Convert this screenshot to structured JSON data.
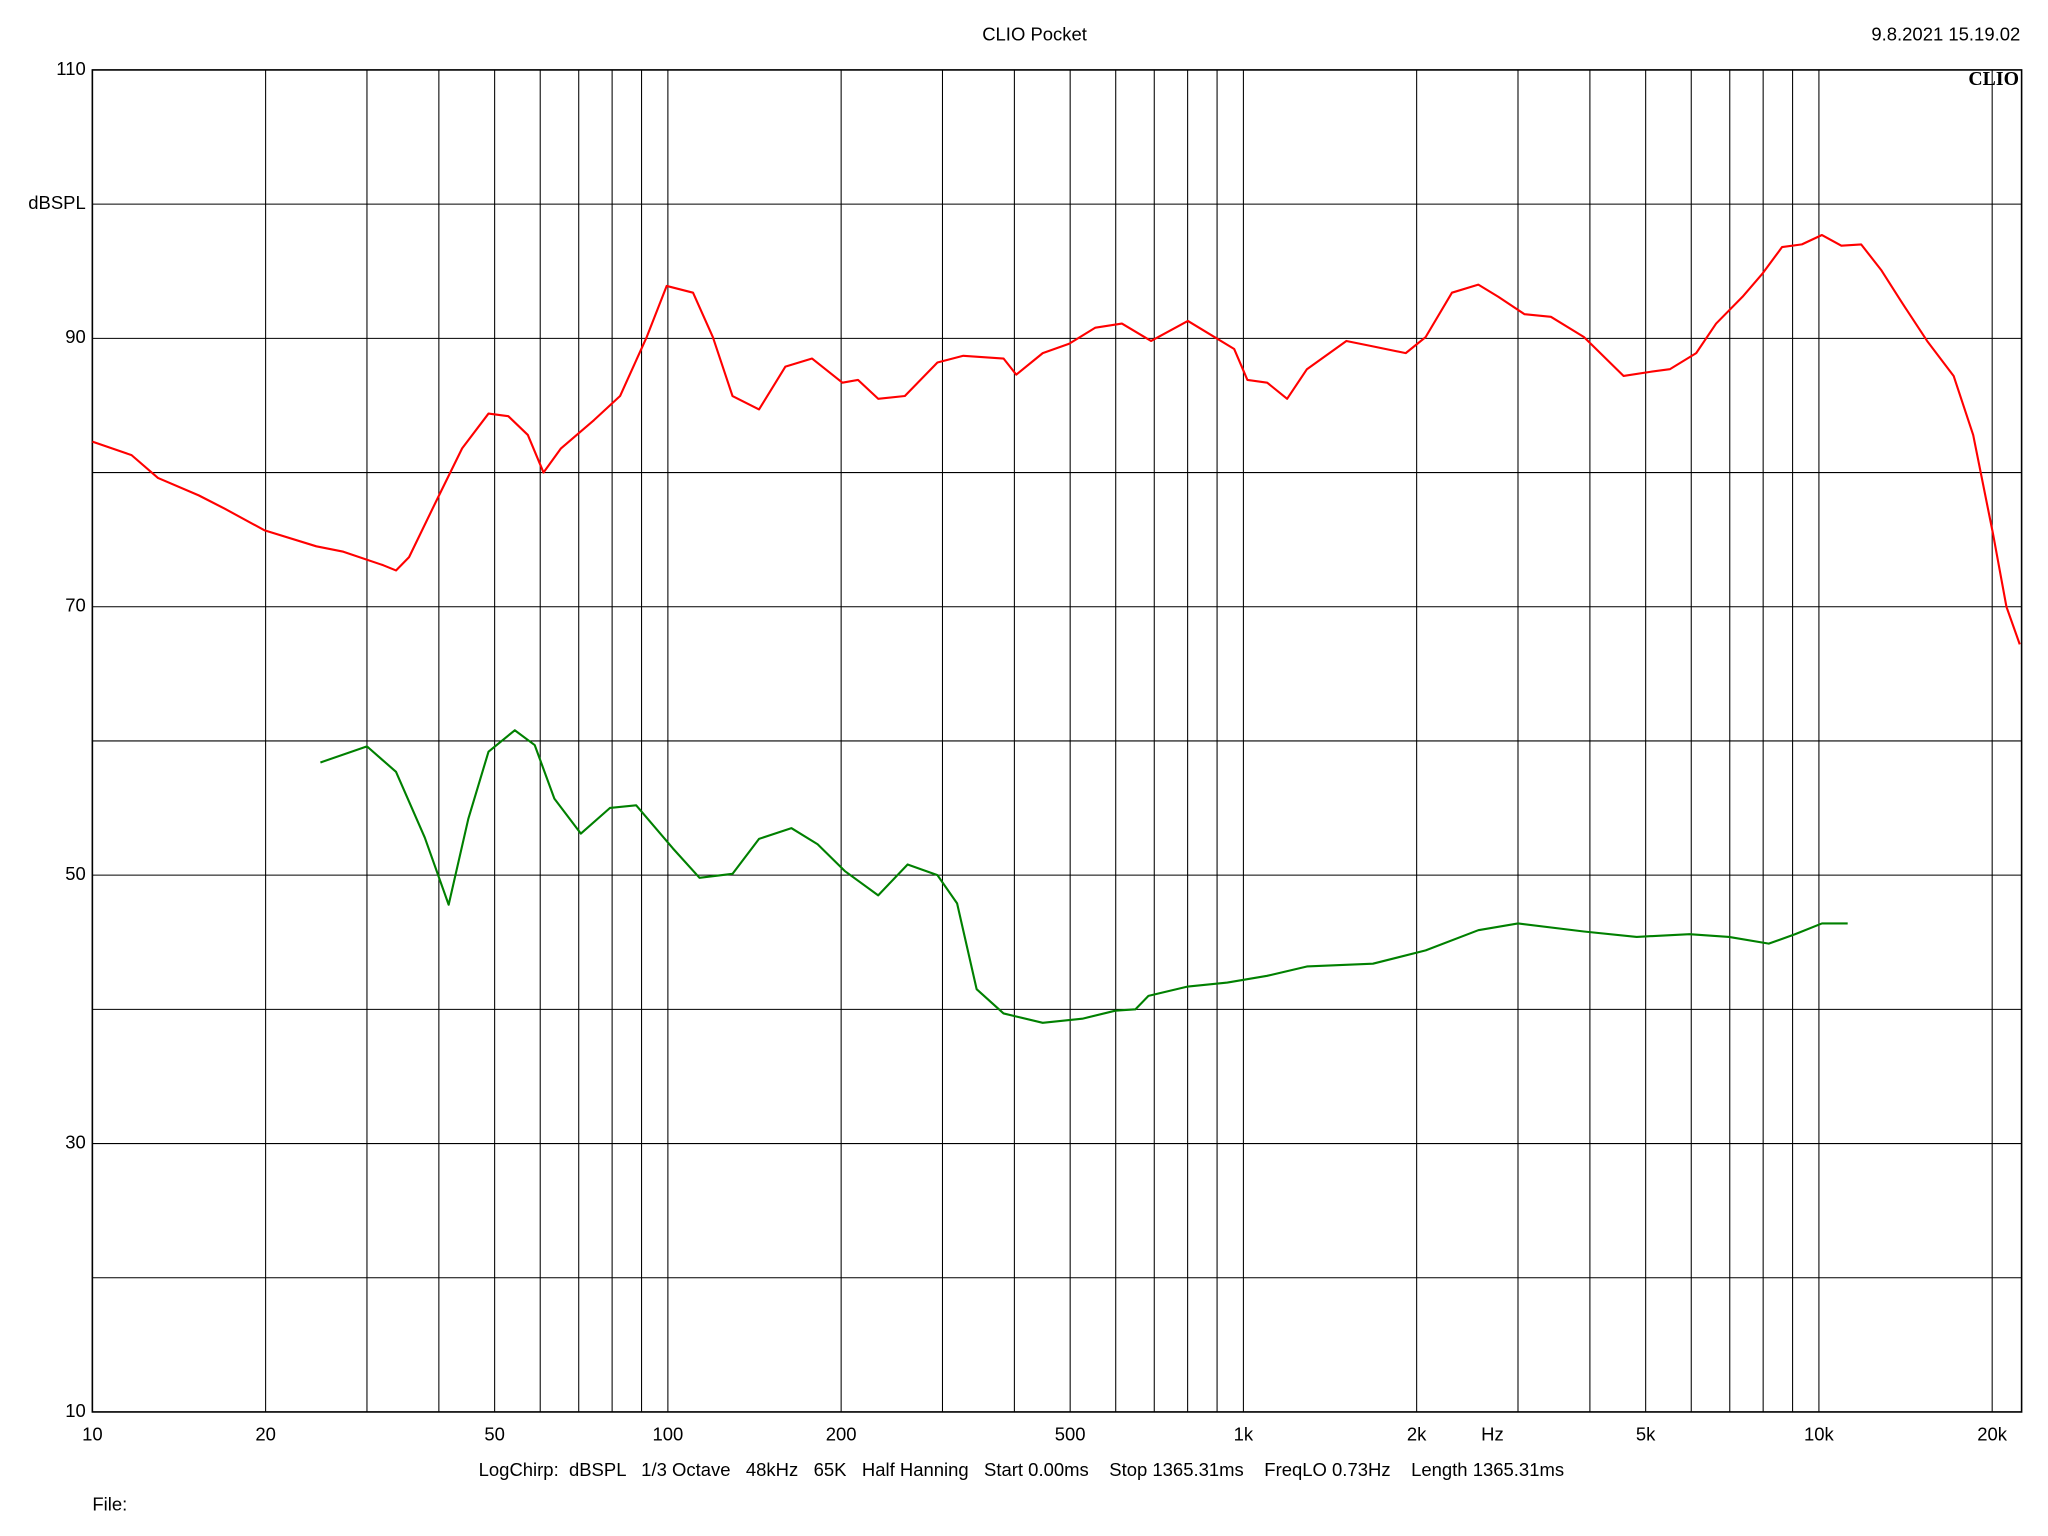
{
  "chart_data": {
    "type": "line",
    "title": "CLIO Pocket",
    "timestamp": "9.8.2021 15.19.02",
    "logo": "CLIO",
    "x_label": "Hz",
    "footer": "LogChirp:  dBSPL   1/3 Octave   48kHz   65K   Half Hanning   Start 0.00ms    Stop 1365.31ms    FreqLO 0.73Hz    Length 1365.31ms",
    "file_label": "File:",
    "xscale": "log",
    "xlim": [
      10,
      22500
    ],
    "ylim": [
      10,
      110
    ],
    "grid": true,
    "xticks": [
      10,
      20,
      50,
      100,
      200,
      500,
      {
        "value": 1000,
        "label": "1k"
      },
      {
        "value": 2000,
        "label": "2k"
      },
      {
        "value": 5000,
        "label": "5k"
      },
      {
        "value": 10000,
        "label": "10k"
      },
      {
        "value": 20000,
        "label": "20k"
      }
    ],
    "xminor": [
      30,
      40,
      60,
      70,
      80,
      90,
      300,
      400,
      600,
      700,
      800,
      900,
      3000,
      4000,
      6000,
      7000,
      8000,
      9000
    ],
    "yticks": [
      10,
      30,
      50,
      70,
      90,
      {
        "value": 100,
        "label": "dBSPL"
      },
      110
    ],
    "yminor": [
      20,
      40,
      60,
      80
    ],
    "series": [
      {
        "color": "#ff0000",
        "x": [
          10,
          11.7,
          13.0,
          15.3,
          17.0,
          19.9,
          24.5,
          27.3,
          32.0,
          33.7,
          35.5,
          39.5,
          43.9,
          48.8,
          52.8,
          57.1,
          60.8,
          65.2,
          74.4,
          82.6,
          91.9,
          99.5,
          110.6,
          119.7,
          129.5,
          144,
          160,
          178,
          201,
          214,
          232,
          258,
          294,
          326,
          383,
          403,
          448,
          498,
          553,
          615,
          691,
          801,
          867,
          964,
          1016,
          1100,
          1191,
          1289,
          1510,
          1679,
          1915,
          2074,
          2303,
          2560,
          2772,
          3080,
          3423,
          3905,
          4577,
          5087,
          5508,
          6121,
          6628,
          7366,
          7970,
          8630,
          9340,
          10120,
          10940,
          11840,
          12820,
          13870,
          15420,
          17140,
          18540,
          20080,
          21170,
          22330
        ],
        "values": [
          82.3,
          81.3,
          79.6,
          78.3,
          77.3,
          75.7,
          74.5,
          74.1,
          73.1,
          72.7,
          73.7,
          77.8,
          81.8,
          84.4,
          84.2,
          82.8,
          80.0,
          81.8,
          83.9,
          85.7,
          90.1,
          93.9,
          93.4,
          90.1,
          85.7,
          84.7,
          87.9,
          88.5,
          86.7,
          86.9,
          85.5,
          85.7,
          88.2,
          88.7,
          88.5,
          87.3,
          88.9,
          89.6,
          90.8,
          91.1,
          89.8,
          91.3,
          90.4,
          89.2,
          86.9,
          86.7,
          85.5,
          87.7,
          89.8,
          89.4,
          88.9,
          90.1,
          93.4,
          94.0,
          93.1,
          91.8,
          91.6,
          90.1,
          87.2,
          87.5,
          87.7,
          88.9,
          91.1,
          93.1,
          94.8,
          96.8,
          97.0,
          97.7,
          96.9,
          97.0,
          95.1,
          92.8,
          89.8,
          87.2,
          82.8,
          75.4,
          70.0,
          67.2
        ]
      },
      {
        "color": "#008000",
        "x": [
          24.9,
          30.0,
          33.7,
          37.8,
          41.6,
          45.0,
          48.8,
          54.2,
          58.7,
          63.5,
          70.6,
          79.3,
          88.1,
          102,
          113.5,
          129.5,
          144,
          164,
          182,
          203,
          232,
          261,
          294,
          318,
          344,
          383,
          448,
          525,
          599,
          649,
          684,
          801,
          938,
          1100,
          1289,
          1679,
          2074,
          2560,
          3000,
          3905,
          4823,
          5956,
          6980,
          8180,
          9100,
          10120,
          11220
        ],
        "values": [
          58.4,
          59.6,
          57.7,
          52.8,
          47.8,
          54.2,
          59.2,
          60.8,
          59.7,
          55.7,
          53.1,
          55.0,
          55.2,
          52.0,
          49.8,
          50.1,
          52.7,
          53.5,
          52.3,
          50.3,
          48.5,
          50.8,
          50.0,
          47.9,
          41.5,
          39.7,
          39.0,
          39.3,
          39.9,
          40.0,
          41.0,
          41.7,
          42.0,
          42.5,
          43.2,
          43.4,
          44.4,
          45.9,
          46.4,
          45.8,
          45.4,
          45.6,
          45.4,
          44.9,
          45.6,
          46.4,
          46.4
        ]
      }
    ]
  }
}
